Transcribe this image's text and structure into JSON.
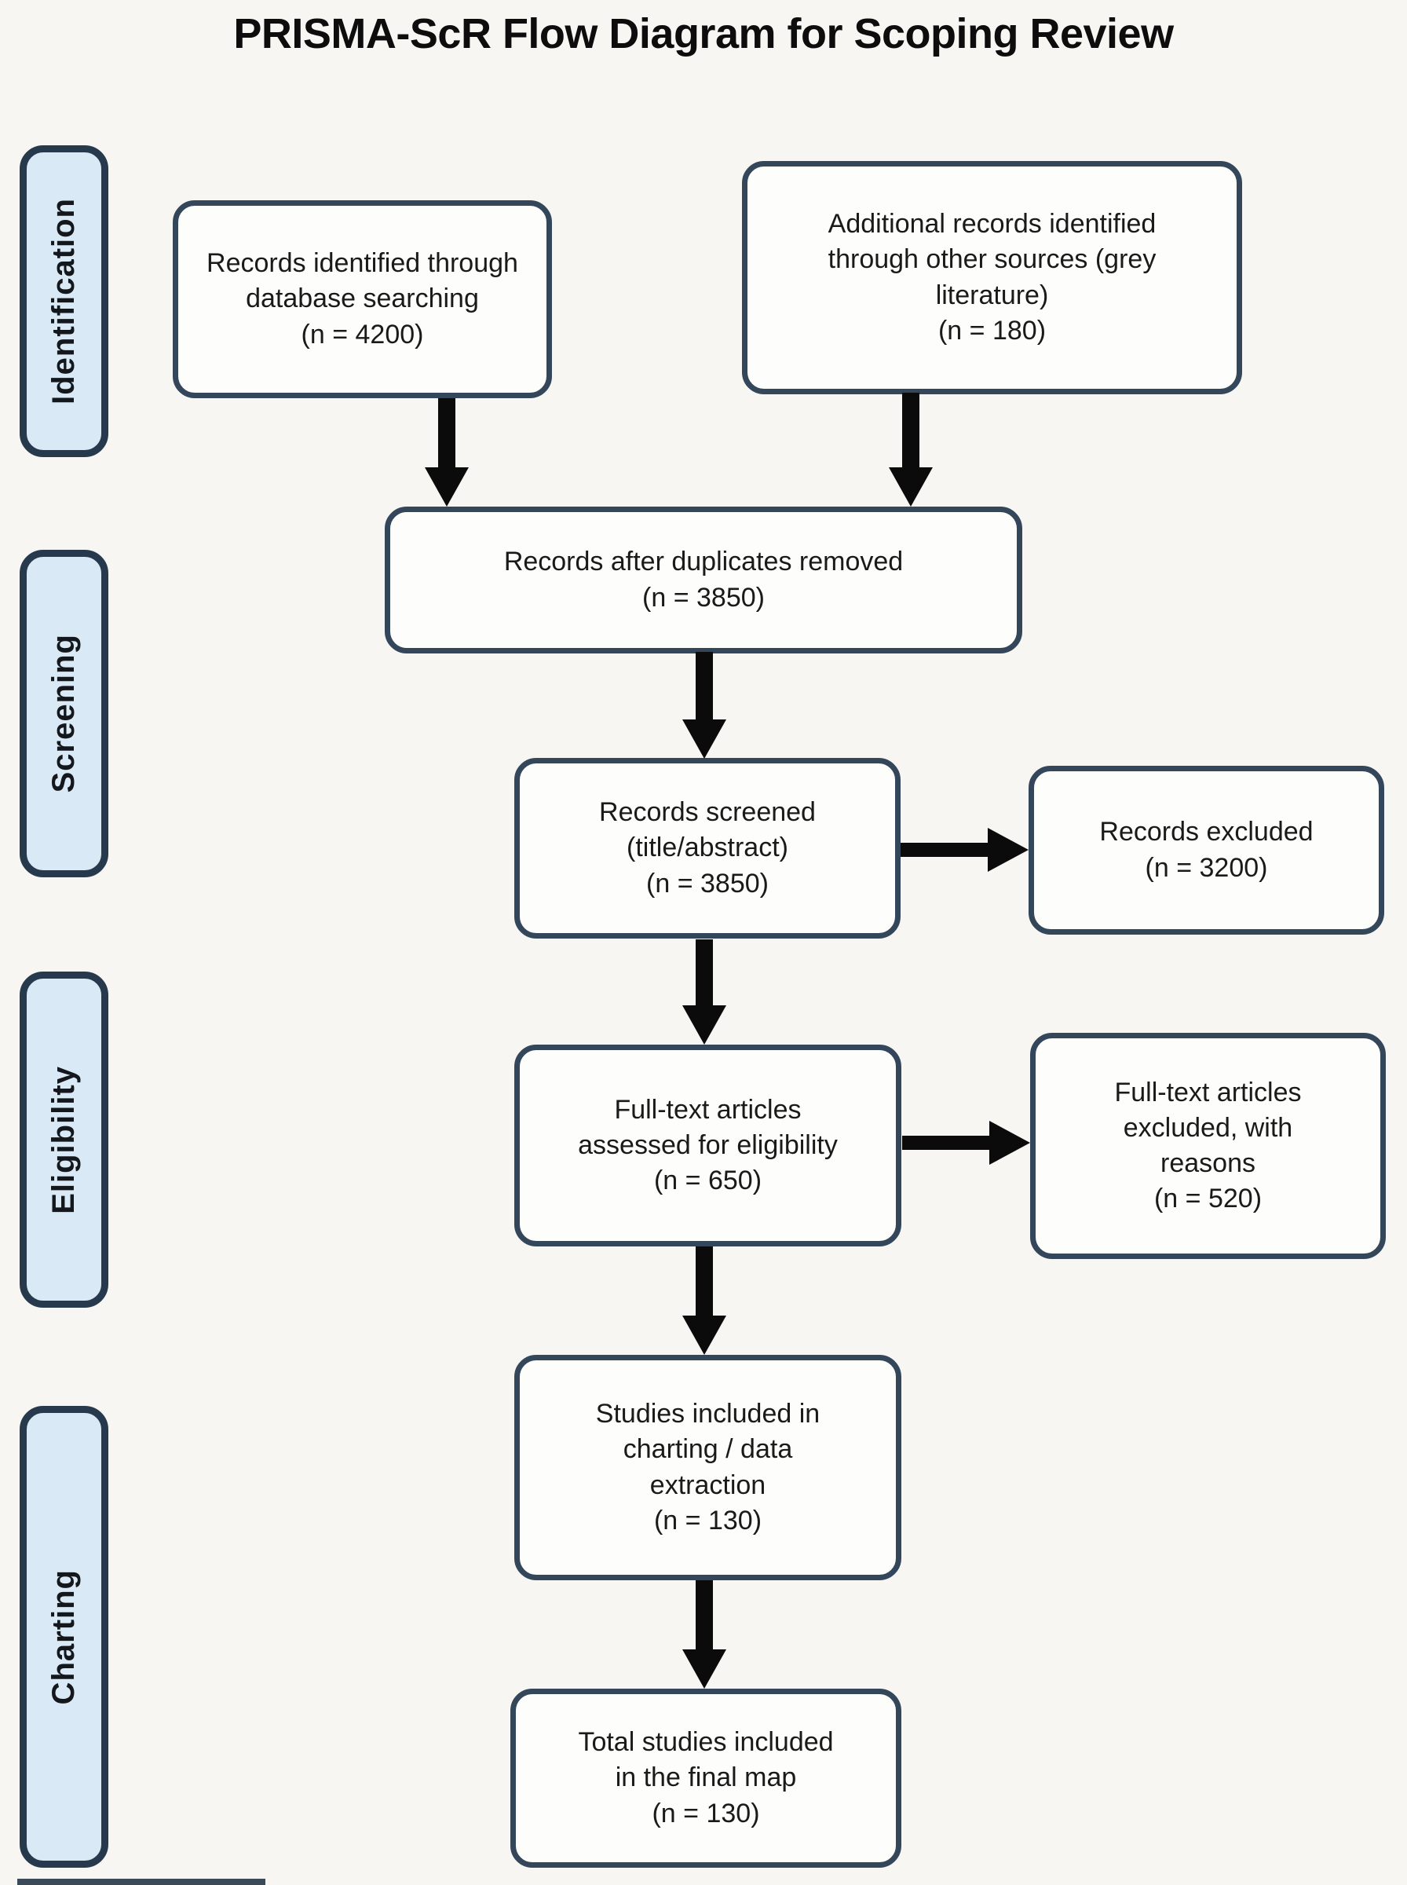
{
  "title": "PRISMA-ScR Flow Diagram for Scoping Review",
  "colors": {
    "background": "#f7f6f3",
    "box-fill": "#fdfdfc",
    "box-border": "#33465a",
    "stage-fill": "#d9e9f5",
    "stage-border": "#27394c",
    "arrow": "#0b0b0b",
    "text": "#1a1a1a"
  },
  "stages": {
    "identification": {
      "label": "Identification"
    },
    "screening": {
      "label": "Screening"
    },
    "eligibility": {
      "label": "Eligibility"
    },
    "charting": {
      "label": "Charting"
    }
  },
  "nodes": {
    "records_identified": {
      "text": "Records identified through\ndatabase searching",
      "count": "(n = 4200)"
    },
    "additional_records": {
      "text": "Additional records identified\nthrough other sources (grey\nliterature)",
      "count": "(n = 180)"
    },
    "after_duplicates": {
      "text": "Records after duplicates removed",
      "count": "(n = 3850)"
    },
    "records_screened": {
      "text": "Records screened\n(title/abstract)",
      "count": "(n = 3850)"
    },
    "records_excluded": {
      "text": "Records excluded",
      "count": "(n = 3200)"
    },
    "fulltext_assessed": {
      "text": "Full-text articles\nassessed for eligibility",
      "count": "(n = 650)"
    },
    "fulltext_excluded": {
      "text": "Full-text articles\nexcluded, with\nreasons",
      "count": "(n = 520)"
    },
    "studies_charting": {
      "text": "Studies included in\ncharting / data\nextraction",
      "count": "(n = 130)"
    },
    "total_included": {
      "text": "Total studies included\nin the final map",
      "count": "(n = 130)"
    }
  }
}
